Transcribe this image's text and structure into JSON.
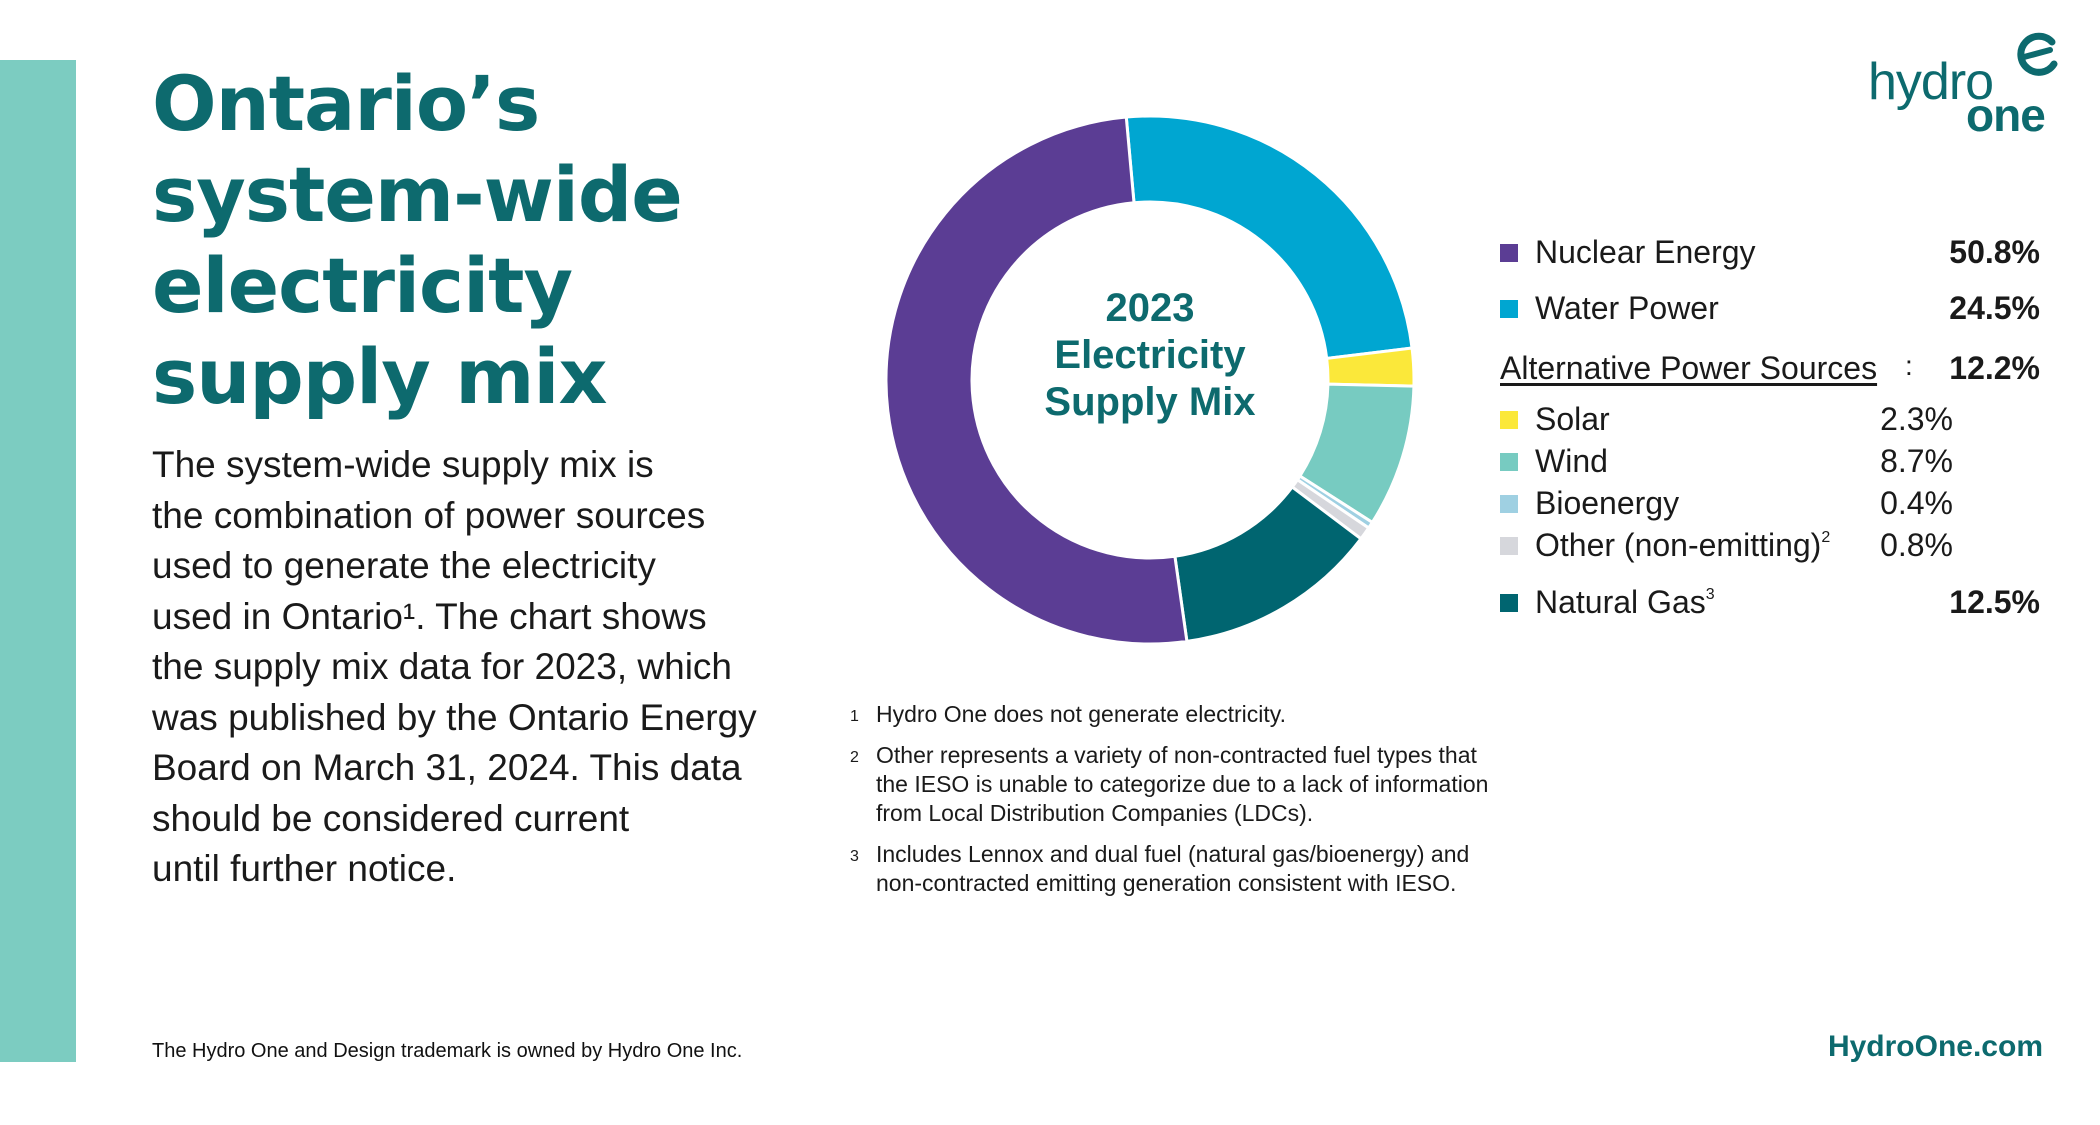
{
  "title": "Ontario’s\nsystem-wide\nelectricity\nsupply mix",
  "intro": "The system-wide supply mix is\nthe combination of power sources\nused to generate the electricity\nused in Ontario¹. The chart shows\nthe supply mix data for 2023, which\nwas published by the Ontario Energy\nBoard on March 31, 2024. This data\nshould be considered current\nuntil further notice.",
  "logo": {
    "word1": "hydro",
    "word2": "one"
  },
  "colors": {
    "teal_dark": "#0d6a6e",
    "side_bar": "#7cccc1",
    "nuclear": "#5b3d94",
    "water": "#00a6d1",
    "solar": "#fbe83a",
    "wind": "#77cbc1",
    "bioenergy": "#9fd0e2",
    "other": "#d6d7dc",
    "gas": "#006570"
  },
  "chart_data": {
    "type": "pie",
    "title": "2023 Electricity Supply Mix",
    "title_lines": [
      "2023",
      "Electricity",
      "Supply Mix"
    ],
    "unit": "%",
    "start_category": "Water Power",
    "categories": [
      "Nuclear Energy",
      "Water Power",
      "Solar",
      "Wind",
      "Bioenergy",
      "Other (non-emitting)",
      "Natural Gas"
    ],
    "values": [
      50.8,
      24.5,
      2.3,
      8.7,
      0.4,
      0.8,
      12.5
    ],
    "legend_placement": "right",
    "group": {
      "name": "Alternative Power Sources",
      "total": "12.2%",
      "members": [
        "Solar",
        "Wind",
        "Bioenergy",
        "Other (non-emitting)"
      ]
    }
  },
  "legend": {
    "nuclear": {
      "label": "Nuclear Energy",
      "value": "50.8%"
    },
    "water": {
      "label": "Water Power",
      "value": "24.5%"
    },
    "alt": {
      "label": "Alternative Power Sources",
      "colon": ":",
      "value": "12.2%"
    },
    "solar": {
      "label": "Solar",
      "value": "2.3%"
    },
    "wind": {
      "label": "Wind",
      "value": "8.7%"
    },
    "bio": {
      "label": "Bioenergy",
      "value": "0.4%"
    },
    "other": {
      "label": "Other (non-emitting)",
      "sup": "2",
      "value": "0.8%"
    },
    "gas": {
      "label": "Natural Gas",
      "sup": "3",
      "value": "12.5%"
    }
  },
  "footnotes": [
    {
      "num": "1",
      "text": "Hydro One does not generate electricity."
    },
    {
      "num": "2",
      "text": "Other represents a variety of non-contracted fuel types that the IESO is unable to categorize due to a lack of information from Local Distribution Companies (LDCs)."
    },
    {
      "num": "3",
      "text": "Includes Lennox and dual fuel (natural gas/bioenergy) and non-contracted emitting generation consistent with IESO."
    }
  ],
  "trademark": "The Hydro One and Design trademark is owned by Hydro One Inc.",
  "website": "HydroOne.com"
}
